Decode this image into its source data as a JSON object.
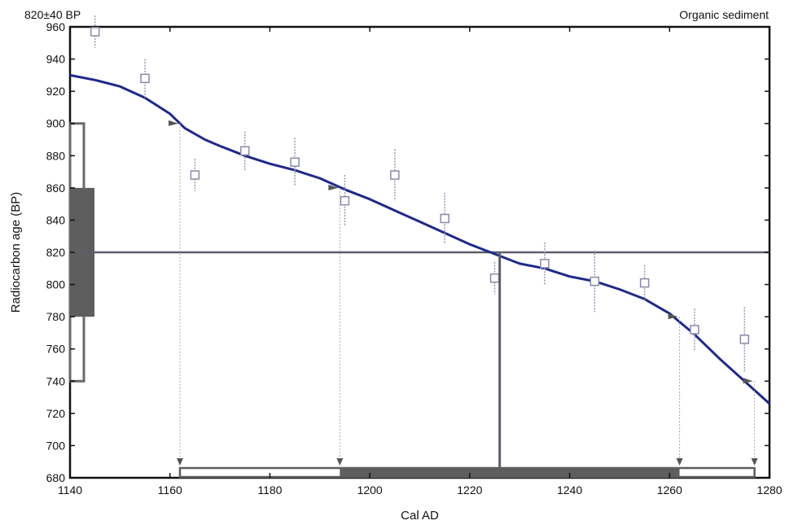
{
  "chart_data": {
    "type": "scatter",
    "title_left": "820±40 BP",
    "title_right": "Organic sediment",
    "xlabel": "Cal AD",
    "ylabel": "Radiocarbon age (BP)",
    "xlim": [
      1140,
      1280
    ],
    "ylim": [
      680,
      960
    ],
    "x_ticks": [
      1140,
      1160,
      1180,
      1200,
      1220,
      1240,
      1260,
      1280
    ],
    "y_ticks": [
      680,
      700,
      720,
      740,
      760,
      780,
      800,
      820,
      840,
      860,
      880,
      900,
      920,
      940,
      960
    ],
    "grid": false,
    "calibration_curve": {
      "x": [
        1140,
        1145,
        1150,
        1155,
        1160,
        1163,
        1167,
        1170,
        1175,
        1180,
        1185,
        1190,
        1195,
        1200,
        1205,
        1210,
        1215,
        1220,
        1225,
        1230,
        1235,
        1240,
        1245,
        1250,
        1255,
        1260,
        1265,
        1270,
        1275,
        1280
      ],
      "y": [
        930,
        927,
        923,
        916,
        906,
        897,
        890,
        886,
        880,
        875,
        871,
        866,
        859,
        853,
        846,
        839,
        832,
        825,
        819,
        813,
        810,
        805,
        802,
        797,
        791,
        782,
        769,
        754,
        740,
        726
      ]
    },
    "measurements": {
      "x": [
        1145,
        1155,
        1165,
        1175,
        1185,
        1195,
        1205,
        1215,
        1225,
        1235,
        1245,
        1255,
        1265,
        1275
      ],
      "y": [
        957,
        928,
        868,
        883,
        876,
        852,
        868,
        841,
        804,
        813,
        802,
        801,
        772,
        766
      ],
      "err": [
        10,
        12,
        10,
        12,
        15,
        16,
        16,
        16,
        10,
        13,
        19,
        11,
        13,
        20
      ]
    },
    "sample": {
      "age": 820,
      "sigma1": [
        780,
        860
      ],
      "sigma2": [
        740,
        900
      ]
    },
    "calibrated_ranges": {
      "sigma2": [
        1162,
        1277
      ],
      "sigma1": [
        1194,
        1262
      ],
      "intercept": 1226
    }
  }
}
